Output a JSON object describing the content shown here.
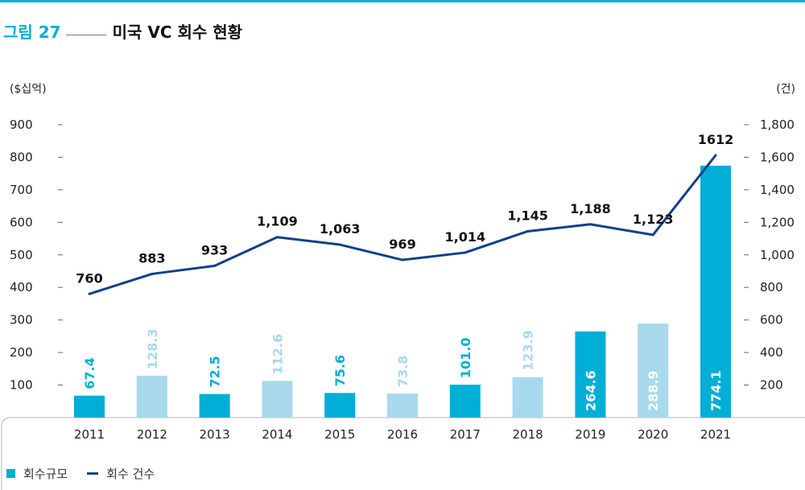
{
  "header": {
    "figure_number": "그림 27",
    "title": "미국 VC 회수 현황"
  },
  "units": {
    "left": "($십억)",
    "right": "(건)"
  },
  "legend": {
    "bars_label": "회수규모",
    "line_label": "회수 건수"
  },
  "colors": {
    "accent": "#00aed6",
    "bar_dark": "#00aed6",
    "bar_light": "#a8d9ec",
    "line": "#123f8c",
    "tick": "#555555"
  },
  "chart_data": {
    "type": "bar+line",
    "categories": [
      "2011",
      "2012",
      "2013",
      "2014",
      "2015",
      "2016",
      "2017",
      "2018",
      "2019",
      "2020",
      "2021"
    ],
    "series": [
      {
        "name": "회수규모",
        "type": "bar",
        "axis": "left",
        "values": [
          67.4,
          128.3,
          72.5,
          112.6,
          75.6,
          73.8,
          101.0,
          123.9,
          264.6,
          288.9,
          774.1
        ],
        "labels": [
          "67.4",
          "128.3",
          "72.5",
          "112.6",
          "75.6",
          "73.8",
          "101.0",
          "123.9",
          "264.6",
          "288.9",
          "774.1"
        ],
        "bar_styles": [
          "dark",
          "light",
          "dark",
          "light",
          "dark",
          "light",
          "dark",
          "light",
          "dark",
          "light",
          "dark"
        ]
      },
      {
        "name": "회수 건수",
        "type": "line",
        "axis": "right",
        "values": [
          760,
          883,
          933,
          1109,
          1063,
          969,
          1014,
          1145,
          1188,
          1123,
          1612
        ],
        "labels": [
          "760",
          "883",
          "933",
          "1,109",
          "1,063",
          "969",
          "1,014",
          "1,145",
          "1,188",
          "1,123",
          "1612"
        ]
      }
    ],
    "y_left": {
      "range": [
        0,
        900
      ],
      "ticks": [
        100,
        200,
        300,
        400,
        500,
        600,
        700,
        800,
        900
      ],
      "tick_labels": [
        "100",
        "200",
        "300",
        "400",
        "500",
        "600",
        "700",
        "800",
        "900"
      ]
    },
    "y_right": {
      "range": [
        0,
        1800
      ],
      "ticks": [
        200,
        400,
        600,
        800,
        1000,
        1200,
        1400,
        1600,
        1800
      ],
      "tick_labels": [
        "200",
        "400",
        "600",
        "800",
        "1,000",
        "1,200",
        "1,400",
        "1,600",
        "1,800"
      ]
    },
    "grid": false,
    "legend_position": "bottom-left"
  }
}
